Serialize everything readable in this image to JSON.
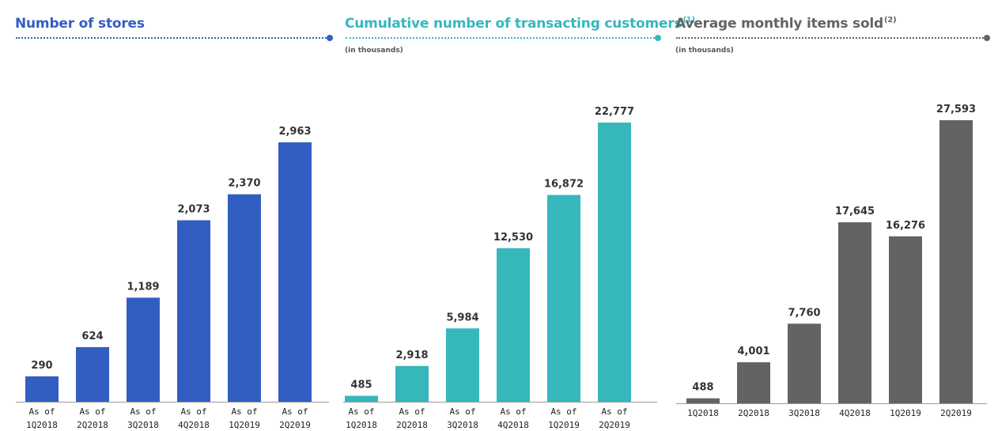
{
  "colors": {
    "blue": "#335EC1",
    "teal": "#36B7BC",
    "gray": "#636363"
  },
  "chart_data": [
    {
      "type": "bar",
      "title": "Number of stores",
      "title_superscript": "",
      "subtitle": "",
      "categories": [
        "As of 1Q2018",
        "As of 2Q2018",
        "As of 3Q2018",
        "As of 4Q2018",
        "As of 1Q2019",
        "As of 2Q2019"
      ],
      "category_lines": [
        [
          "As of",
          "1Q2018"
        ],
        [
          "As of",
          "2Q2018"
        ],
        [
          "As of",
          "3Q2018"
        ],
        [
          "As of",
          "4Q2018"
        ],
        [
          "As of",
          "1Q2019"
        ],
        [
          "As of",
          "2Q2019"
        ]
      ],
      "values": [
        290,
        624,
        1189,
        2073,
        2370,
        2963
      ],
      "value_labels": [
        "290",
        "624",
        "1,189",
        "2,073",
        "2,370",
        "2,963"
      ],
      "ylim": [
        0,
        2963
      ],
      "color": "#335EC1",
      "grid": false
    },
    {
      "type": "bar",
      "title": "Cumulative number of transacting customers",
      "title_superscript": "(1)",
      "subtitle": "(in thousands)",
      "categories": [
        "As of 1Q2018",
        "As of 2Q2018",
        "As of 3Q2018",
        "As of 4Q2018",
        "As of 1Q2019",
        "As of 2Q2019"
      ],
      "category_lines": [
        [
          "As of",
          "1Q2018"
        ],
        [
          "As of",
          "2Q2018"
        ],
        [
          "As of",
          "3Q2018"
        ],
        [
          "As of",
          "4Q2018"
        ],
        [
          "As of",
          "1Q2019"
        ],
        [
          "As of",
          "2Q2019"
        ]
      ],
      "values": [
        485,
        2918,
        5984,
        12530,
        16872,
        22777
      ],
      "value_labels": [
        "485",
        "2,918",
        "5,984",
        "12,530",
        "16,872",
        "22,777"
      ],
      "ylim": [
        0,
        22777
      ],
      "color": "#36B7BC",
      "grid": false
    },
    {
      "type": "bar",
      "title": "Average monthly items sold",
      "title_superscript": "(2)",
      "subtitle": "(in thousands)",
      "categories": [
        "1Q2018",
        "2Q2018",
        "3Q2018",
        "4Q2018",
        "1Q2019",
        "2Q2019"
      ],
      "category_lines": [
        [
          "1Q2018"
        ],
        [
          "2Q2018"
        ],
        [
          "3Q2018"
        ],
        [
          "4Q2018"
        ],
        [
          "1Q2019"
        ],
        [
          "2Q2019"
        ]
      ],
      "values": [
        488,
        4001,
        7760,
        17645,
        16276,
        27593
      ],
      "value_labels": [
        "488",
        "4,001",
        "7,760",
        "17,645",
        "16,276",
        "27,593"
      ],
      "ylim": [
        0,
        27593
      ],
      "color": "#636363",
      "grid": false
    }
  ]
}
